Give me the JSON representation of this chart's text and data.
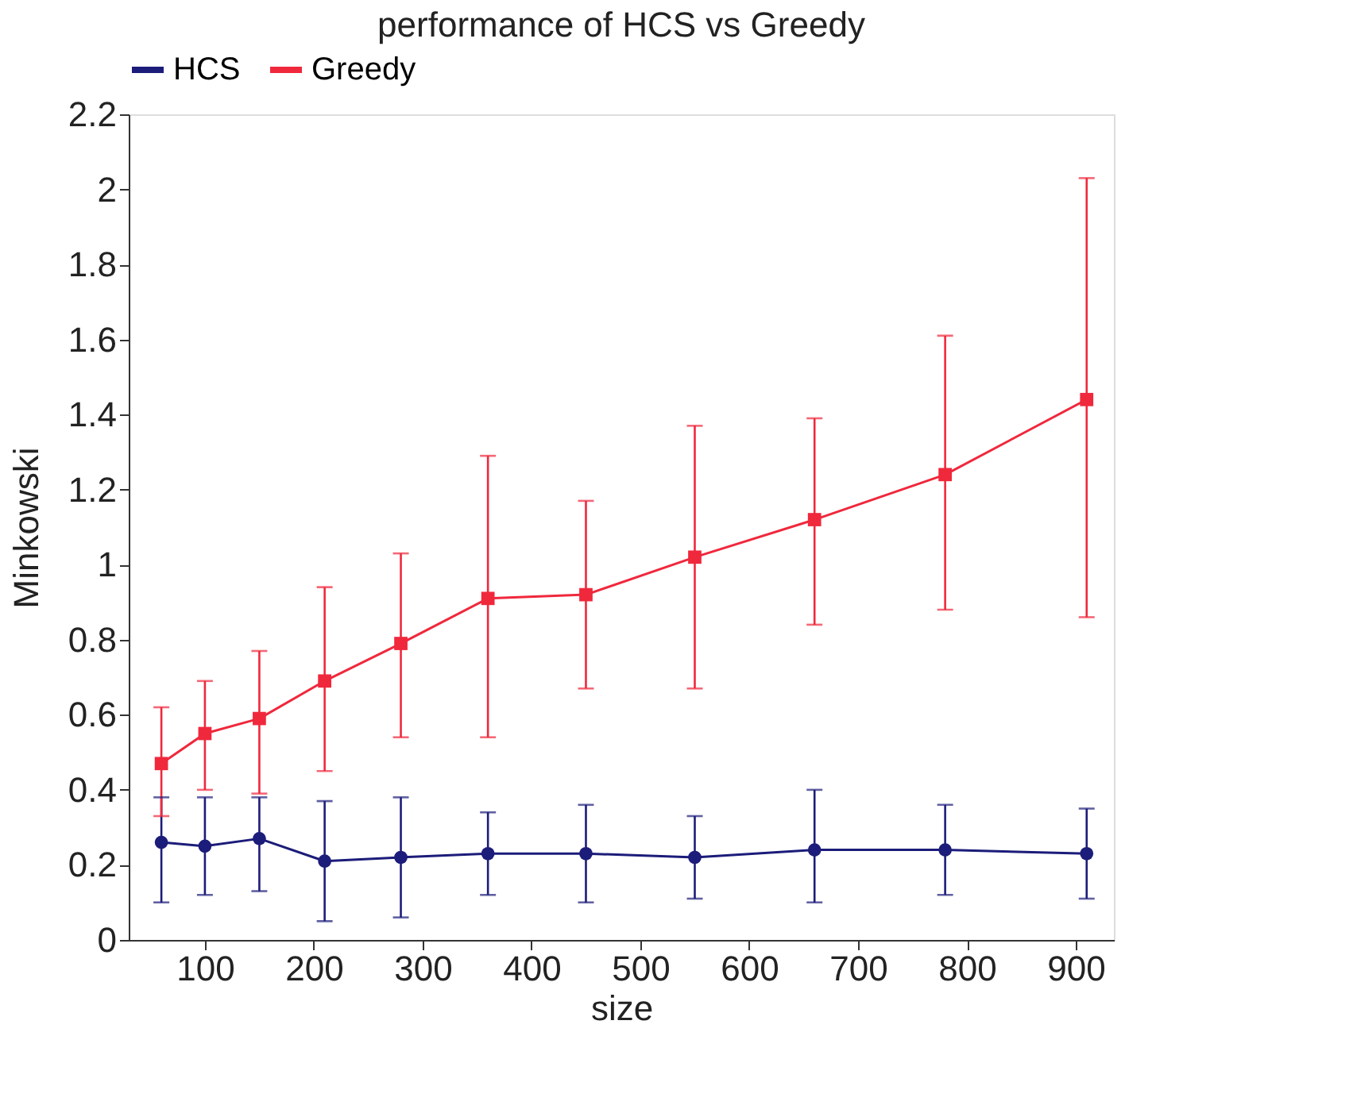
{
  "chart_data": {
    "type": "line",
    "title": "performance of HCS vs Greedy",
    "xlabel": "size",
    "ylabel": "Minkowski",
    "x": [
      60,
      100,
      150,
      210,
      280,
      360,
      450,
      550,
      660,
      780,
      910
    ],
    "xlim": [
      30,
      935
    ],
    "xticks": [
      100,
      200,
      300,
      400,
      500,
      600,
      700,
      800,
      900
    ],
    "ylim": [
      0,
      2.2
    ],
    "yticks": [
      0,
      0.2,
      0.4,
      0.6,
      0.8,
      1,
      1.2,
      1.4,
      1.6,
      1.8,
      2,
      2.2
    ],
    "grid": false,
    "legend": "top",
    "line_style": "solid",
    "series": [
      {
        "name": "HCS",
        "color": "#1c1c7a",
        "marker": "circle",
        "values": [
          0.26,
          0.25,
          0.27,
          0.21,
          0.22,
          0.23,
          0.23,
          0.22,
          0.24,
          0.24,
          0.23
        ],
        "errors": [
          [
            0.1,
            0.38
          ],
          [
            0.12,
            0.38
          ],
          [
            0.13,
            0.38
          ],
          [
            0.05,
            0.37
          ],
          [
            0.06,
            0.38
          ],
          [
            0.12,
            0.34
          ],
          [
            0.1,
            0.36
          ],
          [
            0.11,
            0.33
          ],
          [
            0.1,
            0.4
          ],
          [
            0.12,
            0.36
          ],
          [
            0.11,
            0.35
          ]
        ]
      },
      {
        "name": "Greedy",
        "color": "#f0283c",
        "marker": "square",
        "values": [
          0.47,
          0.55,
          0.59,
          0.69,
          0.79,
          0.91,
          0.92,
          1.02,
          1.12,
          1.24,
          1.44
        ],
        "errors": [
          [
            0.33,
            0.62
          ],
          [
            0.4,
            0.69
          ],
          [
            0.39,
            0.77
          ],
          [
            0.45,
            0.94
          ],
          [
            0.54,
            1.03
          ],
          [
            0.54,
            1.29
          ],
          [
            0.67,
            1.17
          ],
          [
            0.67,
            1.37
          ],
          [
            0.84,
            1.39
          ],
          [
            0.88,
            1.61
          ],
          [
            0.86,
            2.03
          ]
        ]
      }
    ]
  }
}
